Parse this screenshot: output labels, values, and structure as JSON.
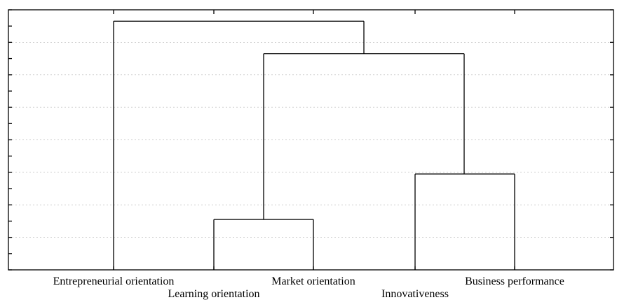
{
  "chart_data": {
    "type": "dendrogram",
    "leaves": [
      "Entrepreneurial orientation",
      "Learning orientation",
      "Market orientation",
      "Innovativeness",
      "Business performance"
    ],
    "y_range": [
      0,
      8
    ],
    "grid": "horizontal dotted lines",
    "merges": [
      {
        "members": [
          "Learning orientation",
          "Market orientation"
        ],
        "height": 1.55
      },
      {
        "members": [
          "Innovativeness",
          "Business performance"
        ],
        "height": 2.95
      },
      {
        "members": [
          "Learning orientation + Market orientation",
          "Innovativeness + Business performance"
        ],
        "height": 6.65
      },
      {
        "members": [
          "Entrepreneurial orientation",
          "all other variables"
        ],
        "height": 7.65
      }
    ]
  }
}
